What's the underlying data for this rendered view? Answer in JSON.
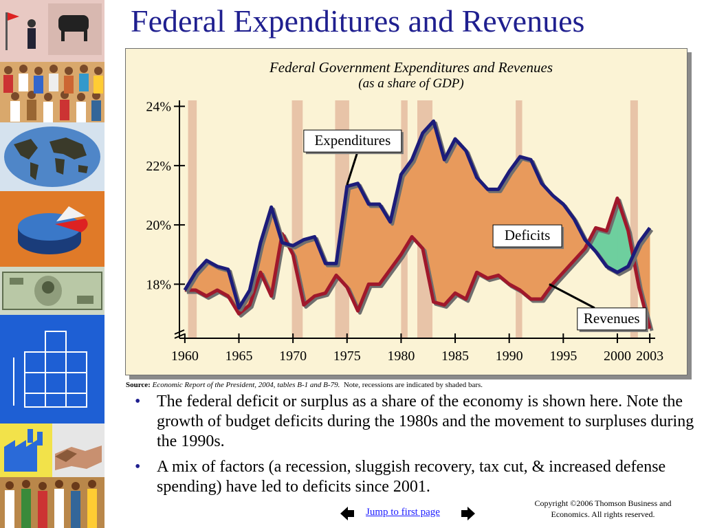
{
  "slide": {
    "title": "Federal Expenditures and Revenues"
  },
  "source": {
    "label": "Source:",
    "citation": "Economic Report of the President, 2004, tables B-1 and B-79.",
    "note": "Note, recessions are indicated by shaded bars."
  },
  "bullets": [
    "The federal deficit or surplus as a share of the economy is shown here.  Note the growth of budget deficits during the 1980s and the movement to surpluses during the 1990s.",
    "A mix of factors (a recession, sluggish recovery, tax cut, & increased defense spending) have led to deficits since 2001."
  ],
  "bullet_glyph": "•",
  "navigation": {
    "jump_label": "Jump to first page",
    "prev_icon": "arrow-left-icon",
    "next_icon": "arrow-right-icon"
  },
  "copyright": {
    "line1": "Copyright ©2006  Thomson Business and",
    "line2": "Economics. All rights reserved."
  },
  "sidebar": {
    "icons": [
      "business-icon",
      "people-crowd-icon",
      "world-map-icon",
      "pie-chart-icon",
      "dollar-bill-icon",
      "building-blocks-icon",
      "factory-icon",
      "handshake-icon"
    ]
  },
  "colors": {
    "title": "#1f1f8f",
    "expenditures_line": "#1c1c7a",
    "revenues_line": "#a0182b",
    "deficit_fill": "#e89a5c",
    "surplus_fill": "#6ecf9e",
    "recession_bar": "#e8c4a8",
    "panel_bg": "#fbf3d5"
  },
  "chart_data": {
    "type": "line",
    "title": "Federal Government Expenditures and Revenues",
    "subtitle": "(as a share of GDP)",
    "xlabel": "",
    "ylabel": "",
    "xlim": [
      1959.5,
      2003.5
    ],
    "ylim": [
      16.2,
      24.2
    ],
    "x_ticks": [
      1960,
      1965,
      1970,
      1975,
      1980,
      1985,
      1990,
      1995,
      2000,
      2003
    ],
    "y_ticks": [
      {
        "value": 18,
        "label": "18%"
      },
      {
        "value": 20,
        "label": "20%"
      },
      {
        "value": 22,
        "label": "22%"
      },
      {
        "value": 24,
        "label": "24%"
      }
    ],
    "axis_break": true,
    "grid": false,
    "x": [
      1960,
      1961,
      1962,
      1963,
      1964,
      1965,
      1966,
      1967,
      1968,
      1969,
      1970,
      1971,
      1972,
      1973,
      1974,
      1975,
      1976,
      1977,
      1978,
      1979,
      1980,
      1981,
      1982,
      1983,
      1984,
      1985,
      1986,
      1987,
      1988,
      1989,
      1990,
      1991,
      1992,
      1993,
      1994,
      1995,
      1996,
      1997,
      1998,
      1999,
      2000,
      2001,
      2002,
      2003
    ],
    "series": [
      {
        "name": "Expenditures",
        "values": [
          17.8,
          18.4,
          18.8,
          18.6,
          18.5,
          17.2,
          17.8,
          19.4,
          20.6,
          19.4,
          19.3,
          19.5,
          19.6,
          18.7,
          18.7,
          21.3,
          21.4,
          20.7,
          20.7,
          20.1,
          21.7,
          22.2,
          23.1,
          23.5,
          22.2,
          22.9,
          22.5,
          21.6,
          21.2,
          21.2,
          21.8,
          22.3,
          22.2,
          21.4,
          21.0,
          20.7,
          20.2,
          19.5,
          19.1,
          18.6,
          18.4,
          18.6,
          19.4,
          19.9
        ]
      },
      {
        "name": "Revenues",
        "values": [
          17.8,
          17.8,
          17.6,
          17.8,
          17.6,
          17.0,
          17.3,
          18.4,
          17.6,
          19.7,
          19.0,
          17.3,
          17.6,
          17.7,
          18.3,
          17.9,
          17.1,
          18.0,
          18.0,
          18.5,
          19.0,
          19.6,
          19.2,
          17.4,
          17.3,
          17.7,
          17.5,
          18.4,
          18.2,
          18.3,
          18.0,
          17.8,
          17.5,
          17.5,
          18.0,
          18.4,
          18.8,
          19.2,
          19.9,
          19.8,
          20.9,
          19.8,
          17.9,
          16.5
        ]
      }
    ],
    "recessions": [
      [
        1960.3,
        1961.1
      ],
      [
        1969.9,
        1970.9
      ],
      [
        1973.9,
        1975.2
      ],
      [
        1980.0,
        1980.6
      ],
      [
        1981.5,
        1982.9
      ],
      [
        1990.6,
        1991.2
      ],
      [
        2001.2,
        2001.9
      ]
    ],
    "annotations": [
      {
        "text": "Expenditures",
        "x": 1971,
        "y": 23.2,
        "pointer": [
          1975,
          21.35
        ]
      },
      {
        "text": "Deficits",
        "x": 1988.5,
        "y": 20.0
      },
      {
        "text": "Revenues",
        "x": 1996.3,
        "y": 17.2,
        "pointer": [
          1993.7,
          18.0
        ]
      }
    ],
    "legend": "annotations"
  }
}
